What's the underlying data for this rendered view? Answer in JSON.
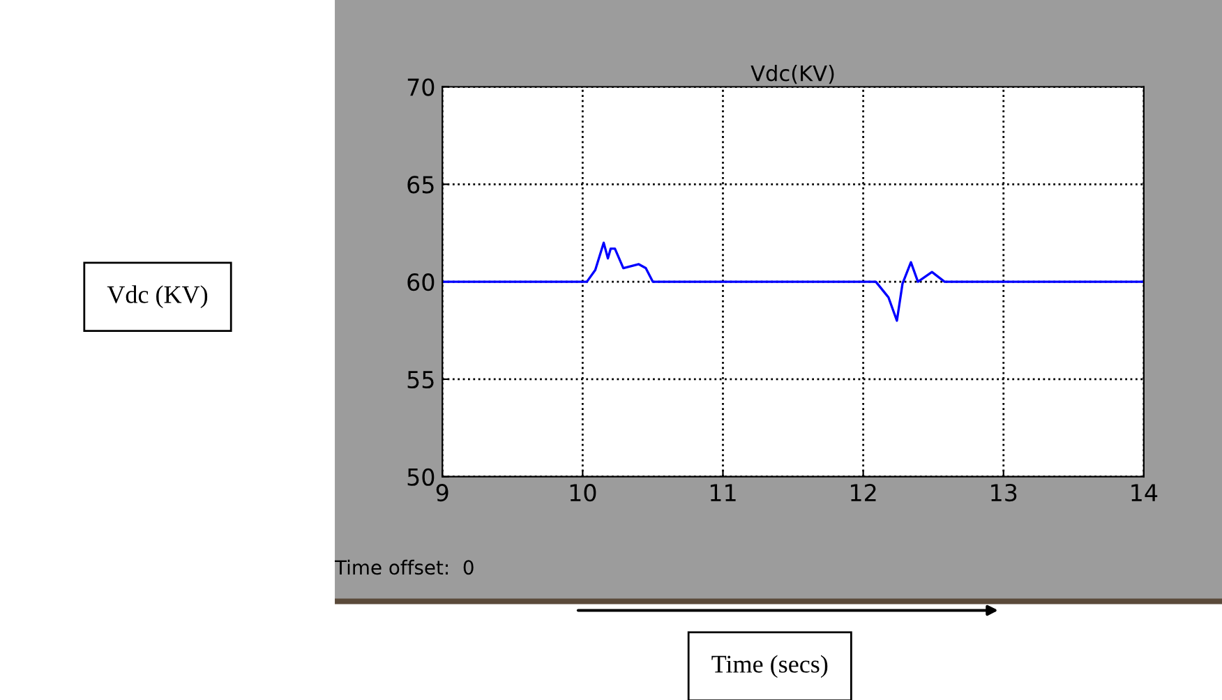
{
  "chart_data": {
    "type": "line",
    "title": "Vdc(KV)",
    "annotations": [
      "Vdc (KV)",
      "Time (secs)",
      "Time offset:  0"
    ],
    "x": [
      9,
      10.0,
      10.03,
      10.09,
      10.15,
      10.18,
      10.2,
      10.23,
      10.29,
      10.4,
      10.45,
      10.5,
      11,
      12,
      12.09,
      12.18,
      12.24,
      12.28,
      12.34,
      12.39,
      12.49,
      12.58,
      13,
      14
    ],
    "series": [
      {
        "color": "#0000ff",
        "values": [
          60,
          60,
          60,
          60.6,
          62.0,
          61.2,
          61.7,
          61.7,
          60.7,
          60.9,
          60.7,
          60,
          60,
          60,
          60,
          59.2,
          58.0,
          59.9,
          61.0,
          60.0,
          60.5,
          60,
          60,
          60
        ]
      }
    ],
    "xlim": [
      9,
      14
    ],
    "ylim": [
      50,
      70
    ],
    "xticks": [
      9,
      10,
      11,
      12,
      13,
      14
    ],
    "yticks": [
      50,
      55,
      60,
      65,
      70
    ],
    "grid": true,
    "marker": "none",
    "line_style": "solid"
  }
}
